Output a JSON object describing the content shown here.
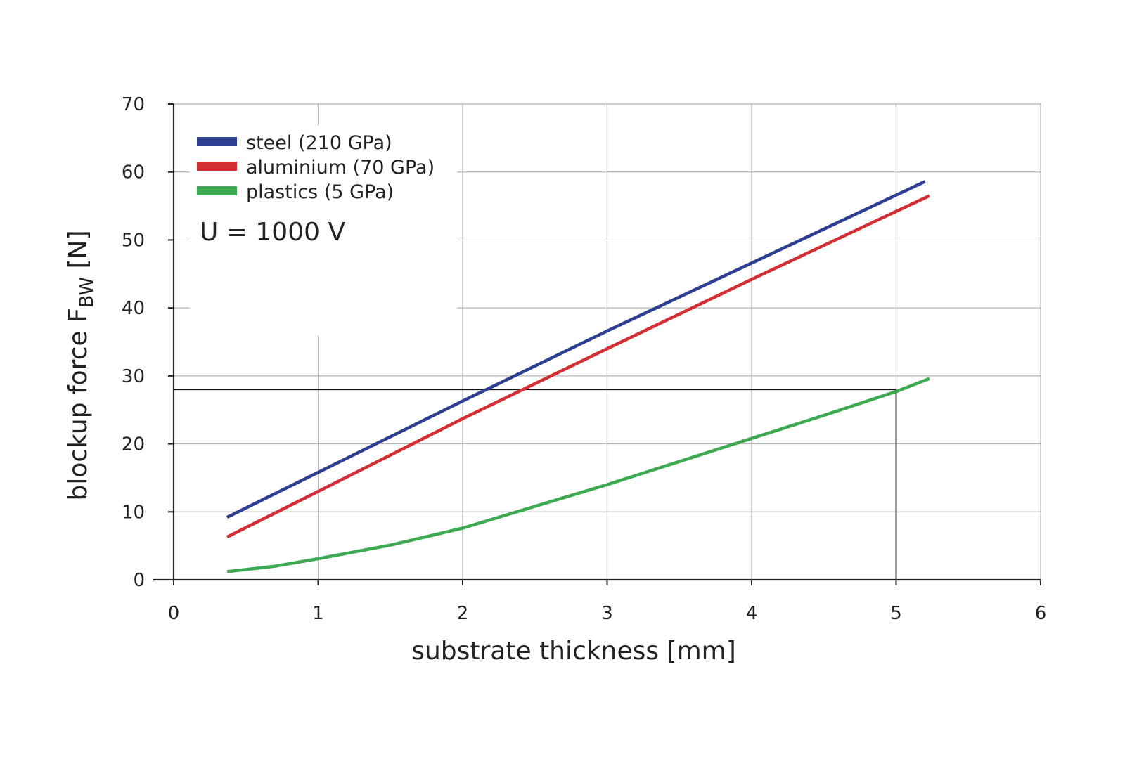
{
  "chart_data": {
    "type": "line",
    "xlabel": "substrate thickness [mm]",
    "ylabel": {
      "main": "blockup force F",
      "subscript": "BW",
      "suffix": " [N]"
    },
    "xlim": [
      0,
      6
    ],
    "ylim": [
      0,
      70
    ],
    "xticks": [
      "0",
      "1",
      "2",
      "3",
      "4",
      "5",
      "6"
    ],
    "yticks": [
      "0",
      "10",
      "20",
      "30",
      "40",
      "50",
      "60",
      "70"
    ],
    "grid": true,
    "legend_position": "top-left",
    "annotation": "U = 1000 V",
    "series": [
      {
        "name": "steel (210 GPa)",
        "color": "#2e3f92",
        "points": [
          [
            0.37,
            9.2
          ],
          [
            1.0,
            15.8
          ],
          [
            2.0,
            26.3
          ],
          [
            3.0,
            36.6
          ],
          [
            4.0,
            46.6
          ],
          [
            5.0,
            56.6
          ],
          [
            5.2,
            58.6
          ]
        ]
      },
      {
        "name": "aluminium (70 GPa)",
        "color": "#d32f32",
        "points": [
          [
            0.37,
            6.3
          ],
          [
            1.0,
            13.0
          ],
          [
            2.0,
            23.7
          ],
          [
            3.0,
            34.0
          ],
          [
            4.0,
            44.2
          ],
          [
            5.0,
            54.2
          ],
          [
            5.23,
            56.5
          ]
        ]
      },
      {
        "name": "plastics (5 GPa)",
        "color": "#3daa52",
        "points": [
          [
            0.37,
            1.2
          ],
          [
            0.7,
            2.0
          ],
          [
            1.0,
            3.1
          ],
          [
            1.5,
            5.1
          ],
          [
            2.0,
            7.6
          ],
          [
            2.5,
            10.8
          ],
          [
            3.0,
            14.0
          ],
          [
            3.5,
            17.4
          ],
          [
            4.0,
            20.8
          ],
          [
            4.5,
            24.2
          ],
          [
            5.0,
            27.7
          ],
          [
            5.23,
            29.6
          ]
        ]
      }
    ],
    "reference_lines": [
      {
        "type": "horizontal",
        "y": 28,
        "x_from": 0,
        "x_to": 5
      },
      {
        "type": "vertical",
        "x": 5,
        "y_from": 0,
        "y_to": 28
      }
    ]
  }
}
